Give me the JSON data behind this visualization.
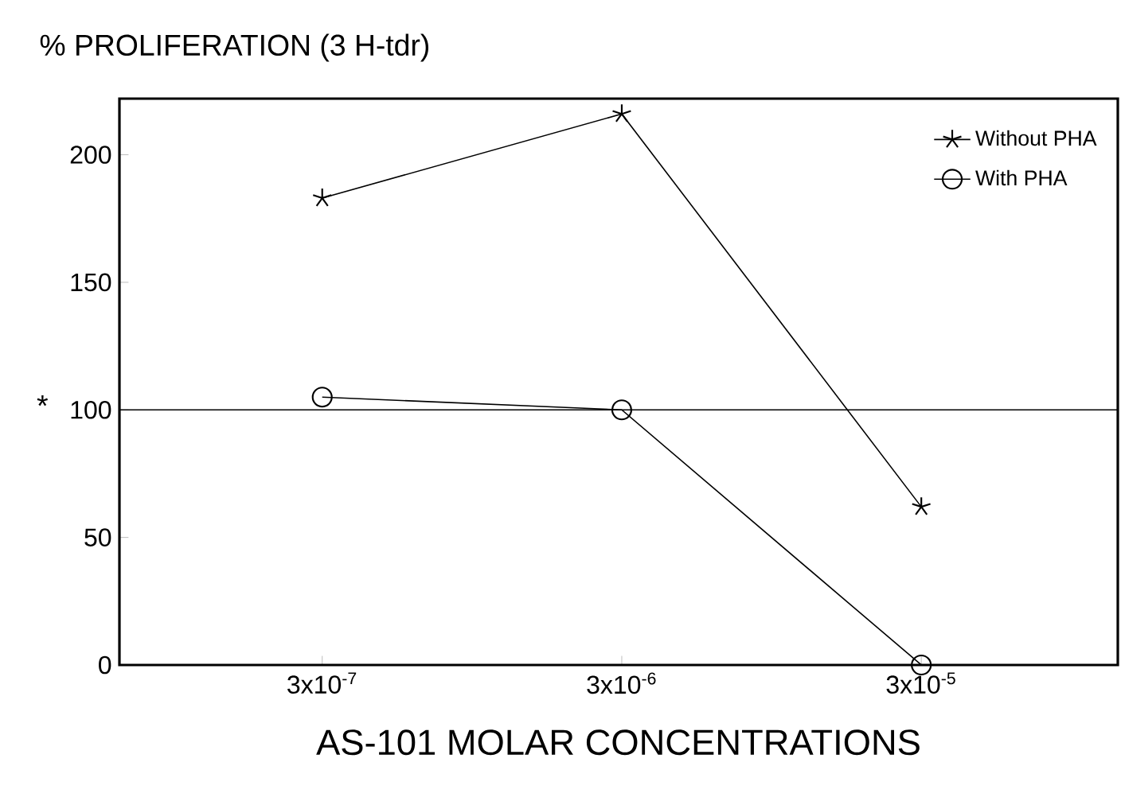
{
  "chart_data": {
    "type": "line",
    "ylabel": "% PROLIFERATION  (3 H-tdr)",
    "xlabel": "AS-101  MOLAR CONCENTRATIONS",
    "categories": [
      "3x10$^{-7}$",
      "3x10$^{-6}$",
      "3x10$^{-5}$"
    ],
    "series": [
      {
        "name": "Without PHA",
        "color": "#000000",
        "marker": "cross",
        "values": [
          183,
          216,
          62
        ]
      },
      {
        "name": "With PHA",
        "color": "#000000",
        "marker": "circle",
        "values": [
          105,
          100,
          0
        ]
      }
    ],
    "ylim": [
      0,
      222
    ],
    "yticks": [
      0,
      50,
      100,
      150,
      200
    ],
    "ref_lines": [
      {
        "axis": "y",
        "value": 100,
        "label": "*",
        "color": "#000000"
      }
    ],
    "legend": "top right",
    "grid": false,
    "line_style": "solid"
  }
}
